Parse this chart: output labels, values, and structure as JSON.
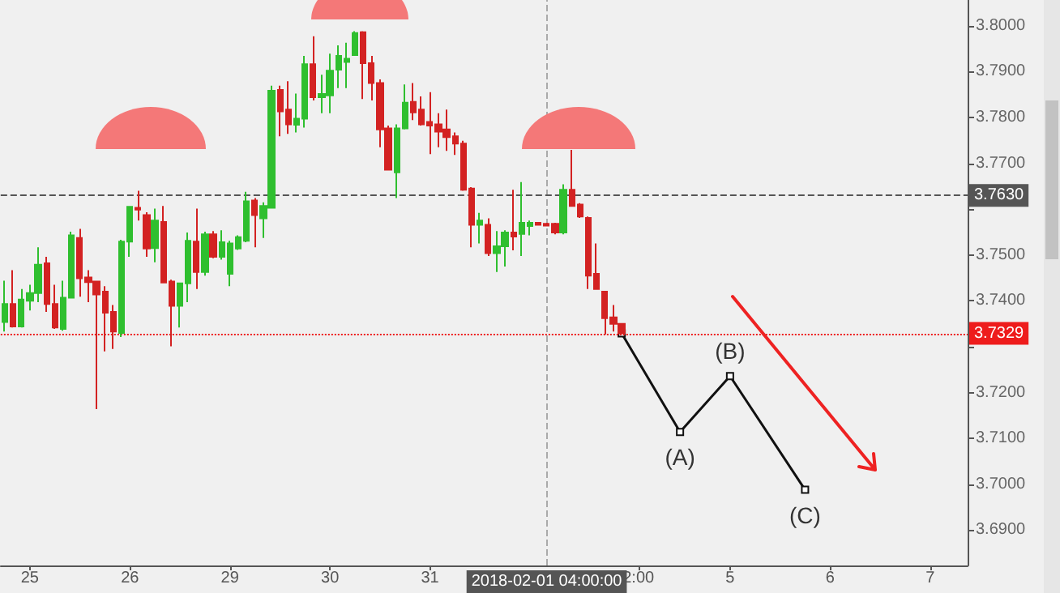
{
  "chart_data": {
    "type": "candlestick",
    "categories": [
      null,
      null,
      null,
      "25",
      null,
      null,
      null,
      null,
      null,
      null,
      null,
      null,
      null,
      null,
      null,
      "26",
      null,
      null,
      null,
      null,
      null,
      null,
      null,
      null,
      null,
      null,
      null,
      "29",
      null,
      null,
      null,
      null,
      null,
      null,
      null,
      null,
      null,
      null,
      null,
      "30",
      null,
      null,
      null,
      null,
      null,
      null,
      null,
      null,
      null,
      null,
      null,
      "31",
      null,
      null,
      null,
      null,
      null,
      null,
      null,
      null,
      null,
      null,
      null,
      null,
      null,
      "2018-02-01 04:00:00",
      null,
      null,
      null,
      null,
      null,
      null,
      null,
      null,
      null,
      null,
      "2:00",
      null,
      null,
      null,
      null,
      null,
      null,
      null,
      null,
      null,
      null,
      "5",
      null,
      null,
      null,
      null,
      null,
      null,
      null,
      null,
      null,
      null,
      null,
      "6",
      null,
      null,
      null,
      null,
      null,
      null,
      null,
      null,
      null,
      null,
      null,
      "7",
      null,
      null,
      null,
      null
    ],
    "ohlc": [
      [
        3.7354,
        3.7444,
        3.7333,
        3.7393
      ],
      [
        3.7393,
        3.7467,
        3.7342,
        3.7344
      ],
      [
        3.7344,
        3.7426,
        3.7342,
        3.7403
      ],
      [
        3.74,
        3.7435,
        3.7379,
        3.7417
      ],
      [
        3.7417,
        3.7517,
        3.7397,
        3.7479
      ],
      [
        3.7482,
        3.7496,
        3.7376,
        3.7393
      ],
      [
        3.7393,
        3.7435,
        3.7339,
        3.7342
      ],
      [
        3.7339,
        3.7444,
        3.7335,
        3.7407
      ],
      [
        3.7407,
        3.7551,
        3.7405,
        3.7543
      ],
      [
        3.7537,
        3.7557,
        3.7409,
        3.7449
      ],
      [
        3.7451,
        3.7467,
        3.7397,
        3.7441
      ],
      [
        3.7442,
        3.7444,
        3.7164,
        3.7414
      ],
      [
        3.742,
        3.7432,
        3.729,
        3.7374
      ],
      [
        3.7376,
        3.7391,
        3.7295,
        3.7333
      ],
      [
        3.733,
        3.7533,
        3.7321,
        3.7529
      ],
      [
        3.7529,
        3.7607,
        3.7496,
        3.7605
      ],
      [
        3.7603,
        3.764,
        3.7575,
        3.7599
      ],
      [
        3.7587,
        3.7593,
        3.7496,
        3.7514
      ],
      [
        3.7515,
        3.7601,
        3.7484,
        3.7575
      ],
      [
        3.7572,
        3.7607,
        3.7438,
        3.744
      ],
      [
        3.7442,
        3.7446,
        3.7301,
        3.7389
      ],
      [
        3.7389,
        3.744,
        3.7342,
        3.7438
      ],
      [
        3.7438,
        3.7549,
        3.7397,
        3.7531
      ],
      [
        3.7529,
        3.7601,
        3.7426,
        3.7463
      ],
      [
        3.7463,
        3.7551,
        3.7455,
        3.7545
      ],
      [
        3.7545,
        3.7552,
        3.7493,
        3.7496
      ],
      [
        3.7496,
        3.7554,
        3.749,
        3.7528
      ],
      [
        3.7459,
        3.7531,
        3.7432,
        3.7525
      ],
      [
        3.7514,
        3.7543,
        3.7511,
        3.7539
      ],
      [
        3.7531,
        3.7638,
        3.7528,
        3.7617
      ],
      [
        3.7619,
        3.7624,
        3.7517,
        3.7587
      ],
      [
        3.758,
        3.7615,
        3.7537,
        3.7607
      ],
      [
        3.7603,
        3.7869,
        3.7601,
        3.7858
      ],
      [
        3.786,
        3.7869,
        3.7759,
        3.7813
      ],
      [
        3.7817,
        3.7879,
        3.7764,
        3.7785
      ],
      [
        3.7784,
        3.7852,
        3.7767,
        3.7797
      ],
      [
        3.7797,
        3.7934,
        3.7778,
        3.7916
      ],
      [
        3.7916,
        3.7977,
        3.7837,
        3.7844
      ],
      [
        3.7844,
        3.7893,
        3.7809,
        3.7851
      ],
      [
        3.7848,
        3.7939,
        3.7809,
        3.7902
      ],
      [
        3.7904,
        3.7957,
        3.7864,
        3.7934
      ],
      [
        3.7921,
        3.7963,
        3.7864,
        3.7928
      ],
      [
        3.7936,
        3.7988,
        3.7934,
        3.7984
      ],
      [
        3.7986,
        3.7988,
        3.784,
        3.7918
      ],
      [
        3.7918,
        3.7934,
        3.7837,
        3.7875
      ],
      [
        3.7875,
        3.7883,
        3.7735,
        3.7774
      ],
      [
        3.7776,
        3.7782,
        3.7685,
        3.7686
      ],
      [
        3.768,
        3.7785,
        3.7624,
        3.7776
      ],
      [
        3.7776,
        3.7872,
        3.7774,
        3.7832
      ],
      [
        3.7834,
        3.7875,
        3.7794,
        3.7811
      ],
      [
        3.7817,
        3.7846,
        3.7782,
        3.7785
      ],
      [
        3.779,
        3.7855,
        3.772,
        3.7782
      ],
      [
        3.7785,
        3.7809,
        3.7735,
        3.7769
      ],
      [
        3.7774,
        3.7817,
        3.7727,
        3.7757
      ],
      [
        3.7759,
        3.7767,
        3.7718,
        3.7743
      ],
      [
        3.7743,
        3.7749,
        3.764,
        3.7642
      ],
      [
        3.7645,
        3.7648,
        3.7517,
        3.7566
      ],
      [
        3.7566,
        3.7592,
        3.7525,
        3.7575
      ],
      [
        3.7566,
        3.758,
        3.7498,
        3.7504
      ],
      [
        3.7504,
        3.7552,
        3.7463,
        3.7519
      ],
      [
        3.7519,
        3.7554,
        3.7475,
        3.7549
      ],
      [
        3.7549,
        3.7642,
        3.751,
        3.754
      ],
      [
        3.7546,
        3.7659,
        3.7498,
        3.757
      ],
      [
        3.7563,
        3.7575,
        3.7543,
        3.757
      ],
      [
        3.757,
        3.7571,
        3.7564,
        3.7566
      ],
      [
        3.7568,
        3.757,
        3.7563,
        3.7564
      ],
      [
        3.7568,
        3.757,
        3.7545,
        3.7549
      ],
      [
        3.7549,
        3.7654,
        3.7545,
        3.7642
      ],
      [
        3.7642,
        3.7729,
        3.7606,
        3.7607
      ],
      [
        3.761,
        3.7613,
        3.7581,
        3.7584
      ],
      [
        3.7581,
        3.7584,
        3.7426,
        3.7455
      ],
      [
        3.7459,
        3.7525,
        3.7424,
        3.7426
      ],
      [
        3.742,
        3.7421,
        3.7327,
        3.7362
      ],
      [
        3.7364,
        3.7391,
        3.7333,
        3.735
      ],
      [
        3.735,
        3.7351,
        3.7327,
        3.7329
      ],
      null,
      null,
      null,
      null,
      null,
      null,
      null,
      null,
      null,
      null,
      null,
      null,
      null,
      null,
      null,
      null,
      null,
      null,
      null,
      null,
      null,
      null,
      null,
      null,
      null,
      null,
      null,
      null,
      null,
      null,
      null,
      null,
      null,
      null,
      null,
      null,
      null,
      null,
      null,
      null,
      null
    ],
    "colors": [
      "#2fbf2f",
      "#d32222",
      "#2fbf2f",
      "#2fbf2f",
      "#2fbf2f",
      "#d32222",
      "#d32222",
      "#2fbf2f",
      "#2fbf2f",
      "#d32222",
      "#d32222",
      "#d32222",
      "#d32222",
      "#d32222",
      "#2fbf2f",
      "#2fbf2f",
      "#d32222",
      "#d32222",
      "#2fbf2f",
      "#d32222",
      "#d32222",
      "#2fbf2f",
      "#2fbf2f",
      "#d32222",
      "#2fbf2f",
      "#d32222",
      "#2fbf2f",
      "#2fbf2f",
      "#2fbf2f",
      "#2fbf2f",
      "#d32222",
      "#2fbf2f",
      "#2fbf2f",
      "#d32222",
      "#d32222",
      "#2fbf2f",
      "#2fbf2f",
      "#d32222",
      "#2fbf2f",
      "#2fbf2f",
      "#2fbf2f",
      "#2fbf2f",
      "#2fbf2f",
      "#d32222",
      "#d32222",
      "#d32222",
      "#d32222",
      "#2fbf2f",
      "#2fbf2f",
      "#d32222",
      "#d32222",
      "#d32222",
      "#d32222",
      "#d32222",
      "#d32222",
      "#d32222",
      "#d32222",
      "#2fbf2f",
      "#d32222",
      "#2fbf2f",
      "#2fbf2f",
      "#d32222",
      "#2fbf2f",
      "#2fbf2f",
      "#d32222",
      "#d32222",
      "#d32222",
      "#2fbf2f",
      "#d32222",
      "#d32222",
      "#d32222",
      "#d32222",
      "#d32222",
      "#d32222",
      "#d32222",
      null,
      null,
      null,
      null,
      null,
      null,
      null,
      null,
      null,
      null,
      null,
      null,
      null,
      null,
      null,
      null,
      null,
      null,
      null,
      null,
      null,
      null,
      null,
      null,
      null,
      null,
      null,
      null,
      null,
      null,
      null,
      null,
      null,
      null,
      null,
      null,
      null,
      null,
      null,
      null,
      null
    ],
    "series": [
      {
        "type": "line",
        "color": "#111111",
        "marker": "square",
        "values": [
          null,
          null,
          null,
          null,
          null,
          null,
          null,
          null,
          null,
          null,
          null,
          null,
          null,
          null,
          null,
          null,
          null,
          null,
          null,
          null,
          null,
          null,
          null,
          null,
          null,
          null,
          null,
          null,
          null,
          null,
          null,
          null,
          null,
          null,
          null,
          null,
          null,
          null,
          null,
          null,
          null,
          null,
          null,
          null,
          null,
          null,
          null,
          null,
          null,
          null,
          null,
          null,
          null,
          null,
          null,
          null,
          null,
          null,
          null,
          null,
          null,
          null,
          null,
          null,
          null,
          null,
          null,
          null,
          null,
          null,
          null,
          null,
          null,
          null,
          3.7329,
          null,
          null,
          null,
          null,
          null,
          null,
          3.7114,
          null,
          null,
          null,
          null,
          null,
          3.7236,
          null,
          null,
          null,
          null,
          null,
          null,
          null,
          null,
          3.6988,
          null,
          null,
          null,
          null,
          null,
          null,
          null,
          null,
          null,
          null,
          null,
          null,
          null,
          null,
          null,
          null,
          null,
          null,
          null
        ]
      }
    ],
    "ylim": [
      3.6823,
      3.8056
    ],
    "yticks": [
      {
        "value": 3.69,
        "label": "3.6900"
      },
      {
        "value": 3.7,
        "label": "3.7000"
      },
      {
        "value": 3.71,
        "label": "3.7100"
      },
      {
        "value": 3.72,
        "label": "3.7200"
      },
      {
        "value": 3.73,
        "label": null
      },
      {
        "value": 3.74,
        "label": "3.7400"
      },
      {
        "value": 3.75,
        "label": "3.7500"
      },
      {
        "value": 3.76,
        "label": null
      },
      {
        "value": 3.77,
        "label": "3.7700"
      },
      {
        "value": 3.78,
        "label": "3.7800"
      },
      {
        "value": 3.79,
        "label": "3.7900"
      },
      {
        "value": 3.8,
        "label": "3.8000"
      }
    ],
    "ref_lines": [
      {
        "axis": "x",
        "value": "2018-02-01 04:00:00",
        "color": "#aaaaaa",
        "line_style": "dashed"
      },
      {
        "axis": "y",
        "value": 3.763,
        "label": "3.7630",
        "color": "#555555",
        "line_style": "dashed"
      },
      {
        "axis": "y",
        "value": 3.7329,
        "label": "3.7329",
        "color": "#ee1c1c",
        "line_style": "dotted"
      }
    ],
    "annotations": [
      {
        "text": "(A)",
        "y": 3.7114
      },
      {
        "text": "(B)",
        "y": 3.7236
      },
      {
        "text": "(C)",
        "y": 3.6988
      }
    ],
    "grid": false
  }
}
